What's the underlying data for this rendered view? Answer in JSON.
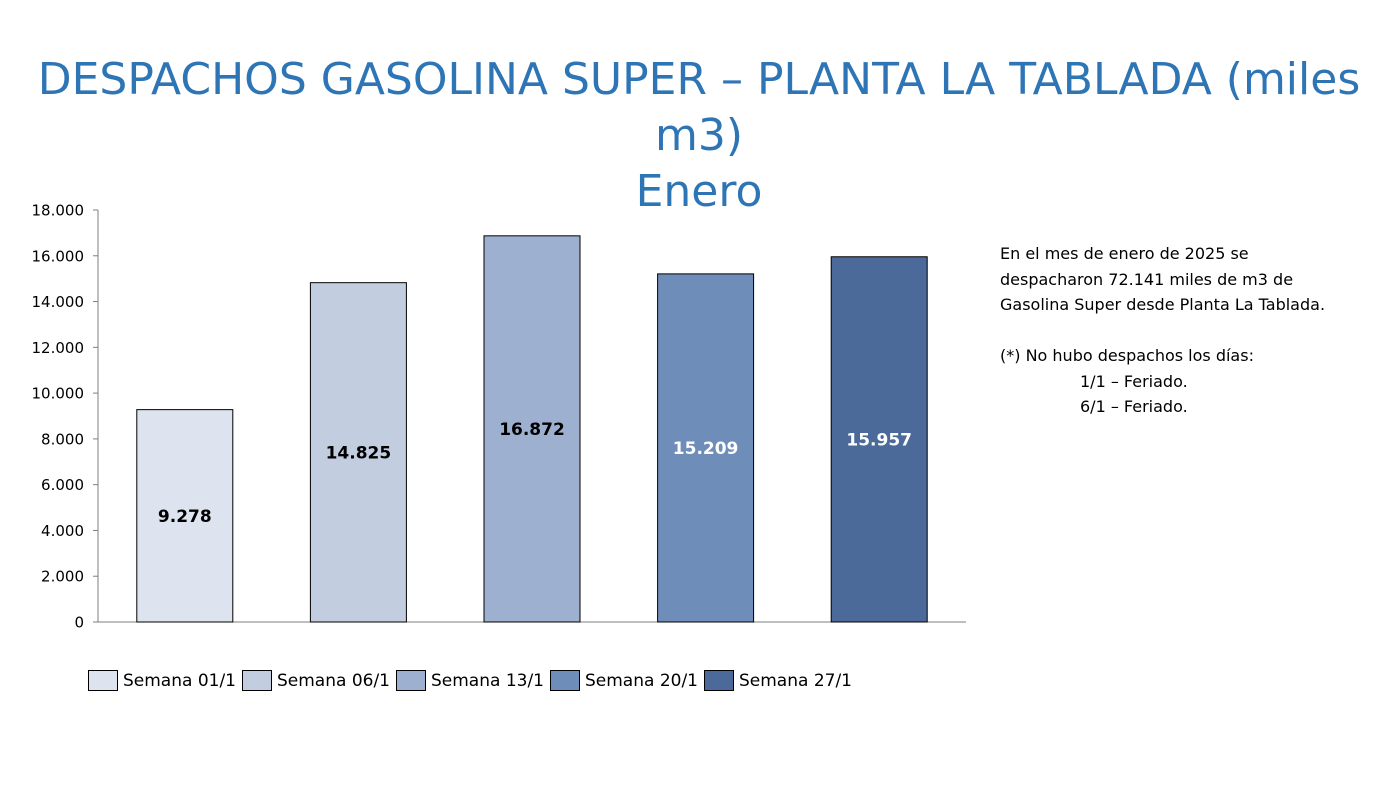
{
  "title": {
    "line1": "DESPACHOS GASOLINA SUPER – PLANTA LA TABLADA (miles m3)",
    "line2": "Enero"
  },
  "chart_data": {
    "type": "bar",
    "categories": [
      "Semana 01/1",
      "Semana 06/1",
      "Semana 13/1",
      "Semana 20/1",
      "Semana 27/1"
    ],
    "values": [
      9278,
      14825,
      16872,
      15209,
      15957
    ],
    "value_labels": [
      "9.278",
      "14.825",
      "16.872",
      "15.209",
      "15.957"
    ],
    "ylim": [
      0,
      18000
    ],
    "yticks": [
      0,
      2000,
      4000,
      6000,
      8000,
      10000,
      12000,
      14000,
      16000,
      18000
    ],
    "ytick_labels": [
      "0",
      "2.000",
      "4.000",
      "6.000",
      "8.000",
      "10.000",
      "12.000",
      "14.000",
      "16.000",
      "18.000"
    ],
    "colors": [
      "#dde4ef",
      "#c3cde0",
      "#9eb0cf",
      "#6f8db9",
      "#4c6a99"
    ],
    "label_colors": [
      "#000000",
      "#000000",
      "#000000",
      "#ffffff",
      "#ffffff"
    ],
    "grid": false,
    "legend_position": "bottom"
  },
  "notes": {
    "line1": "En el mes de enero de 2025 se",
    "line2": "despacharon 72.141 miles de m3 de",
    "line3": "Gasolina Super desde Planta La Tablada.",
    "line4": "(*) No hubo despachos los días:",
    "line5": "1/1 – Feriado.",
    "line6": "6/1 – Feriado."
  }
}
